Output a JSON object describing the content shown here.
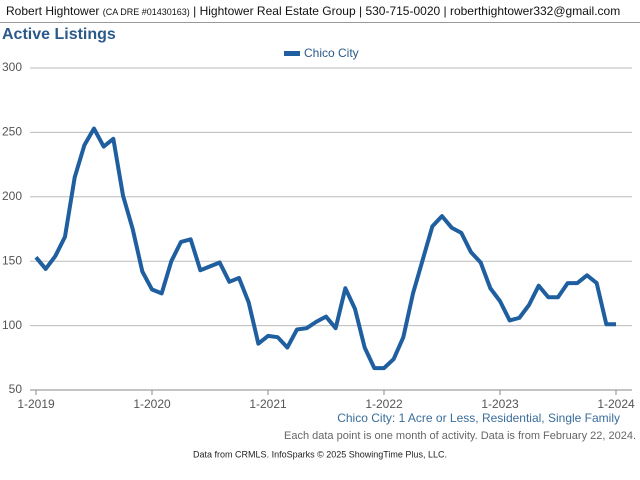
{
  "header": {
    "name": "Robert Hightower",
    "license": "(CA DRE #01430163)",
    "details": "| Hightower Real Estate Group | 530-715-0020 | roberthightower332@gmail.com"
  },
  "chart_data": {
    "type": "line",
    "title": "Active Listings",
    "categories": [
      "1-2019",
      null,
      null,
      null,
      null,
      null,
      null,
      null,
      null,
      null,
      null,
      null,
      "1-2020",
      null,
      null,
      null,
      null,
      null,
      null,
      null,
      null,
      null,
      null,
      null,
      "1-2021",
      null,
      null,
      null,
      null,
      null,
      null,
      null,
      null,
      null,
      null,
      null,
      "1-2022",
      null,
      null,
      null,
      null,
      null,
      null,
      null,
      null,
      null,
      null,
      null,
      "1-2023",
      null,
      null,
      null,
      null,
      null,
      null,
      null,
      null,
      null,
      null,
      null,
      "1-2024"
    ],
    "series": [
      {
        "name": "Chico City",
        "color": "#1f5fa0",
        "values": [
          153,
          144,
          154,
          169,
          215,
          240,
          253,
          239,
          245,
          201,
          175,
          142,
          128,
          125,
          150,
          165,
          167,
          143,
          146,
          149,
          134,
          137,
          118,
          86,
          92,
          91,
          83,
          97,
          98,
          103,
          107,
          98,
          129,
          113,
          83,
          67,
          67,
          74,
          91,
          125,
          151,
          177,
          185,
          176,
          172,
          157,
          149,
          129,
          119,
          104,
          106,
          116,
          131,
          122,
          122,
          133,
          133,
          139,
          133,
          101,
          101
        ]
      }
    ],
    "ylim": [
      50,
      300
    ],
    "yticks": [
      50,
      100,
      150,
      200,
      250,
      300
    ],
    "grid": true,
    "legend": "top",
    "subtitle": "Chico City: 1 Acre or Less, Residential, Single Family",
    "note": "Each data point is one month of activity. Data is from February 22, 2024.",
    "source": "Data from CRMLS. InfoSparks © 2025 ShowingTime Plus, LLC."
  }
}
